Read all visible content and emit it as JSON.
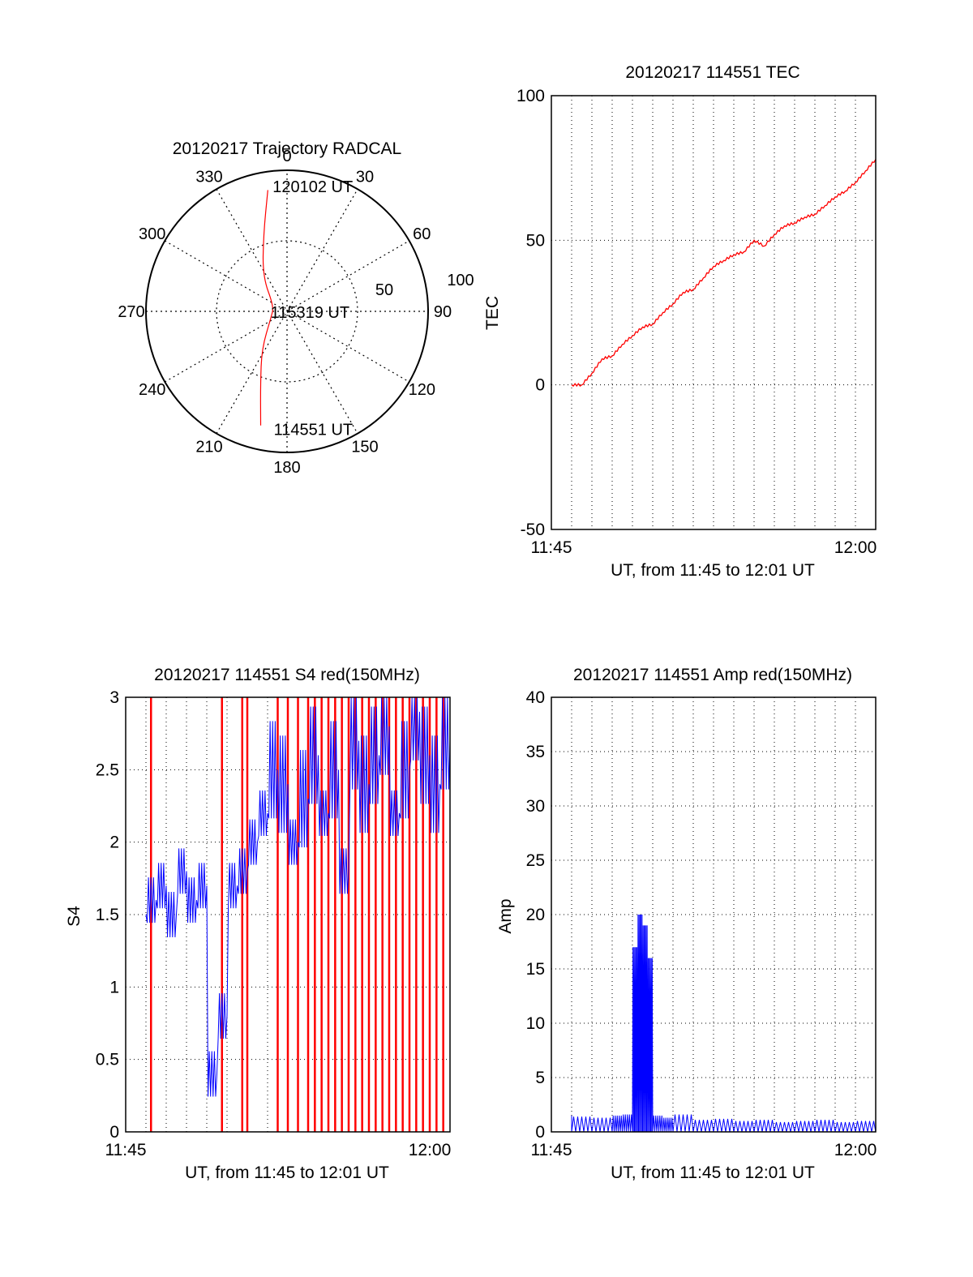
{
  "chart_data": [
    {
      "id": "polar",
      "type": "polar-trajectory",
      "title": "20120217 Trajectory RADCAL",
      "azimuth_labels": [
        "0",
        "30",
        "60",
        "90",
        "120",
        "150",
        "180",
        "210",
        "240",
        "270",
        "300",
        "330"
      ],
      "radial_labels": [
        "50",
        "100"
      ],
      "elevation_rings": [
        50,
        100
      ],
      "trajectory_color": "#ff0000",
      "trajectory": [
        {
          "az": 193,
          "el": 17
        },
        {
          "az": 200,
          "el": 45
        },
        {
          "az": 214,
          "el": 68
        },
        {
          "az": 250,
          "el": 88
        },
        {
          "az": 290,
          "el": 90
        },
        {
          "az": 325,
          "el": 70
        },
        {
          "az": 343,
          "el": 43
        },
        {
          "az": 351,
          "el": 13
        }
      ],
      "annotations": [
        {
          "text": "120102 UT",
          "az": 352,
          "el": 10
        },
        {
          "text": "115319 UT",
          "az": 270,
          "el": 86
        },
        {
          "text": "114551 UT",
          "az": 188,
          "el": 16
        }
      ]
    },
    {
      "id": "tec",
      "type": "line",
      "title": "20120217 114551 TEC",
      "xlabel": "UT, from 11:45 to 12:01 UT",
      "ylabel": "TEC",
      "x_range": [
        "11:45",
        "12:01"
      ],
      "x_tick_labels": [
        "11:45",
        "12:00"
      ],
      "y_tick_labels": [
        "-50",
        "0",
        "50",
        "100"
      ],
      "ylim": [
        -50,
        100
      ],
      "grid": true,
      "series": [
        {
          "color": "#ff0000",
          "x": [
            "11:46",
            "11:46:30",
            "11:47",
            "11:47:30",
            "11:48",
            "11:48:30",
            "11:49",
            "11:49:30",
            "11:50",
            "11:50:30",
            "11:51",
            "11:51:30",
            "11:52",
            "11:52:30",
            "11:53",
            "11:53:30",
            "11:54",
            "11:54:30",
            "11:55",
            "11:55:30",
            "11:56",
            "11:56:30",
            "11:57",
            "11:57:30",
            "11:58",
            "11:58:30",
            "11:59",
            "11:59:30",
            "12:00",
            "12:00:30",
            "12:01"
          ],
          "values": [
            0,
            0,
            4,
            9,
            10,
            14,
            17,
            20,
            21,
            25,
            28,
            32,
            33,
            37,
            41,
            43,
            45,
            46,
            50,
            48,
            52,
            55,
            56,
            58,
            59,
            62,
            65,
            67,
            70,
            74,
            78
          ]
        }
      ]
    },
    {
      "id": "s4",
      "type": "line",
      "title": "20120217 114551 S4 red(150MHz)",
      "xlabel": "UT, from 11:45 to 12:01 UT",
      "ylabel": "S4",
      "x_range": [
        "11:45",
        "12:01"
      ],
      "x_tick_labels": [
        "11:45",
        "12:00"
      ],
      "y_tick_labels": [
        "0",
        "0.5",
        "1",
        "1.5",
        "2",
        "2.5",
        "3"
      ],
      "ylim": [
        0,
        3
      ],
      "grid": true,
      "series": [
        {
          "color": "#0000ff",
          "x": [
            "11:46",
            "11:46:30",
            "11:47",
            "11:47:30",
            "11:48",
            "11:48:30",
            "11:49",
            "11:49:30",
            "11:50",
            "11:50:30",
            "11:51",
            "11:51:30",
            "11:52",
            "11:52:30",
            "11:53",
            "11:53:30",
            "11:54",
            "11:54:30",
            "11:55",
            "11:55:30",
            "11:56",
            "11:56:30",
            "11:57",
            "11:57:30",
            "11:58",
            "11:58:30",
            "11:59",
            "11:59:30",
            "12:00",
            "12:00:30",
            "12:01"
          ],
          "values": [
            1.5,
            1.6,
            1.7,
            1.5,
            1.8,
            1.6,
            1.7,
            0.4,
            0.8,
            1.7,
            1.8,
            2.0,
            2.2,
            2.5,
            2.4,
            2.0,
            2.3,
            2.6,
            2.2,
            2.5,
            1.8,
            2.7,
            2.4,
            2.6,
            2.8,
            2.2,
            2.5,
            2.9,
            2.6,
            2.4,
            2.7
          ]
        },
        {
          "color": "#ff0000",
          "spikes_at": [
            "11:46:15",
            "11:49:45",
            "11:50:45",
            "11:51",
            "11:52:30",
            "11:53",
            "11:53:30",
            "11:54",
            "11:54:20",
            "11:54:40",
            "11:55",
            "11:55:20",
            "11:55:40",
            "11:56",
            "11:56:20",
            "11:56:40",
            "11:57",
            "11:57:20",
            "11:57:40",
            "11:58",
            "11:58:20",
            "11:58:40",
            "11:59",
            "11:59:20",
            "11:59:40",
            "12:00",
            "12:00:20",
            "12:00:40"
          ],
          "spike_value": 3
        }
      ]
    },
    {
      "id": "amp",
      "type": "line",
      "title": "20120217 114551 Amp red(150MHz)",
      "xlabel": "UT, from 11:45 to 12:01 UT",
      "ylabel": "Amp",
      "x_range": [
        "11:45",
        "12:01"
      ],
      "x_tick_labels": [
        "11:45",
        "12:00"
      ],
      "y_tick_labels": [
        "0",
        "5",
        "10",
        "15",
        "20",
        "25",
        "30",
        "35",
        "40"
      ],
      "ylim": [
        0,
        40
      ],
      "grid": true,
      "series": [
        {
          "color": "#0000ff",
          "x": [
            "11:46",
            "11:47",
            "11:48",
            "11:48:30",
            "11:49",
            "11:49:15",
            "11:49:30",
            "11:49:45",
            "11:50",
            "11:50:30",
            "11:51",
            "11:52",
            "11:53",
            "11:54",
            "11:55",
            "11:56",
            "11:57",
            "11:58",
            "11:59",
            "12:00",
            "12:01"
          ],
          "values": [
            1.5,
            1.4,
            1.3,
            1.5,
            1.6,
            17,
            20,
            19,
            16,
            1.5,
            1.3,
            1.6,
            1.1,
            1.2,
            1.0,
            1.1,
            0.9,
            1.0,
            1.1,
            0.9,
            1.0
          ]
        }
      ]
    }
  ]
}
